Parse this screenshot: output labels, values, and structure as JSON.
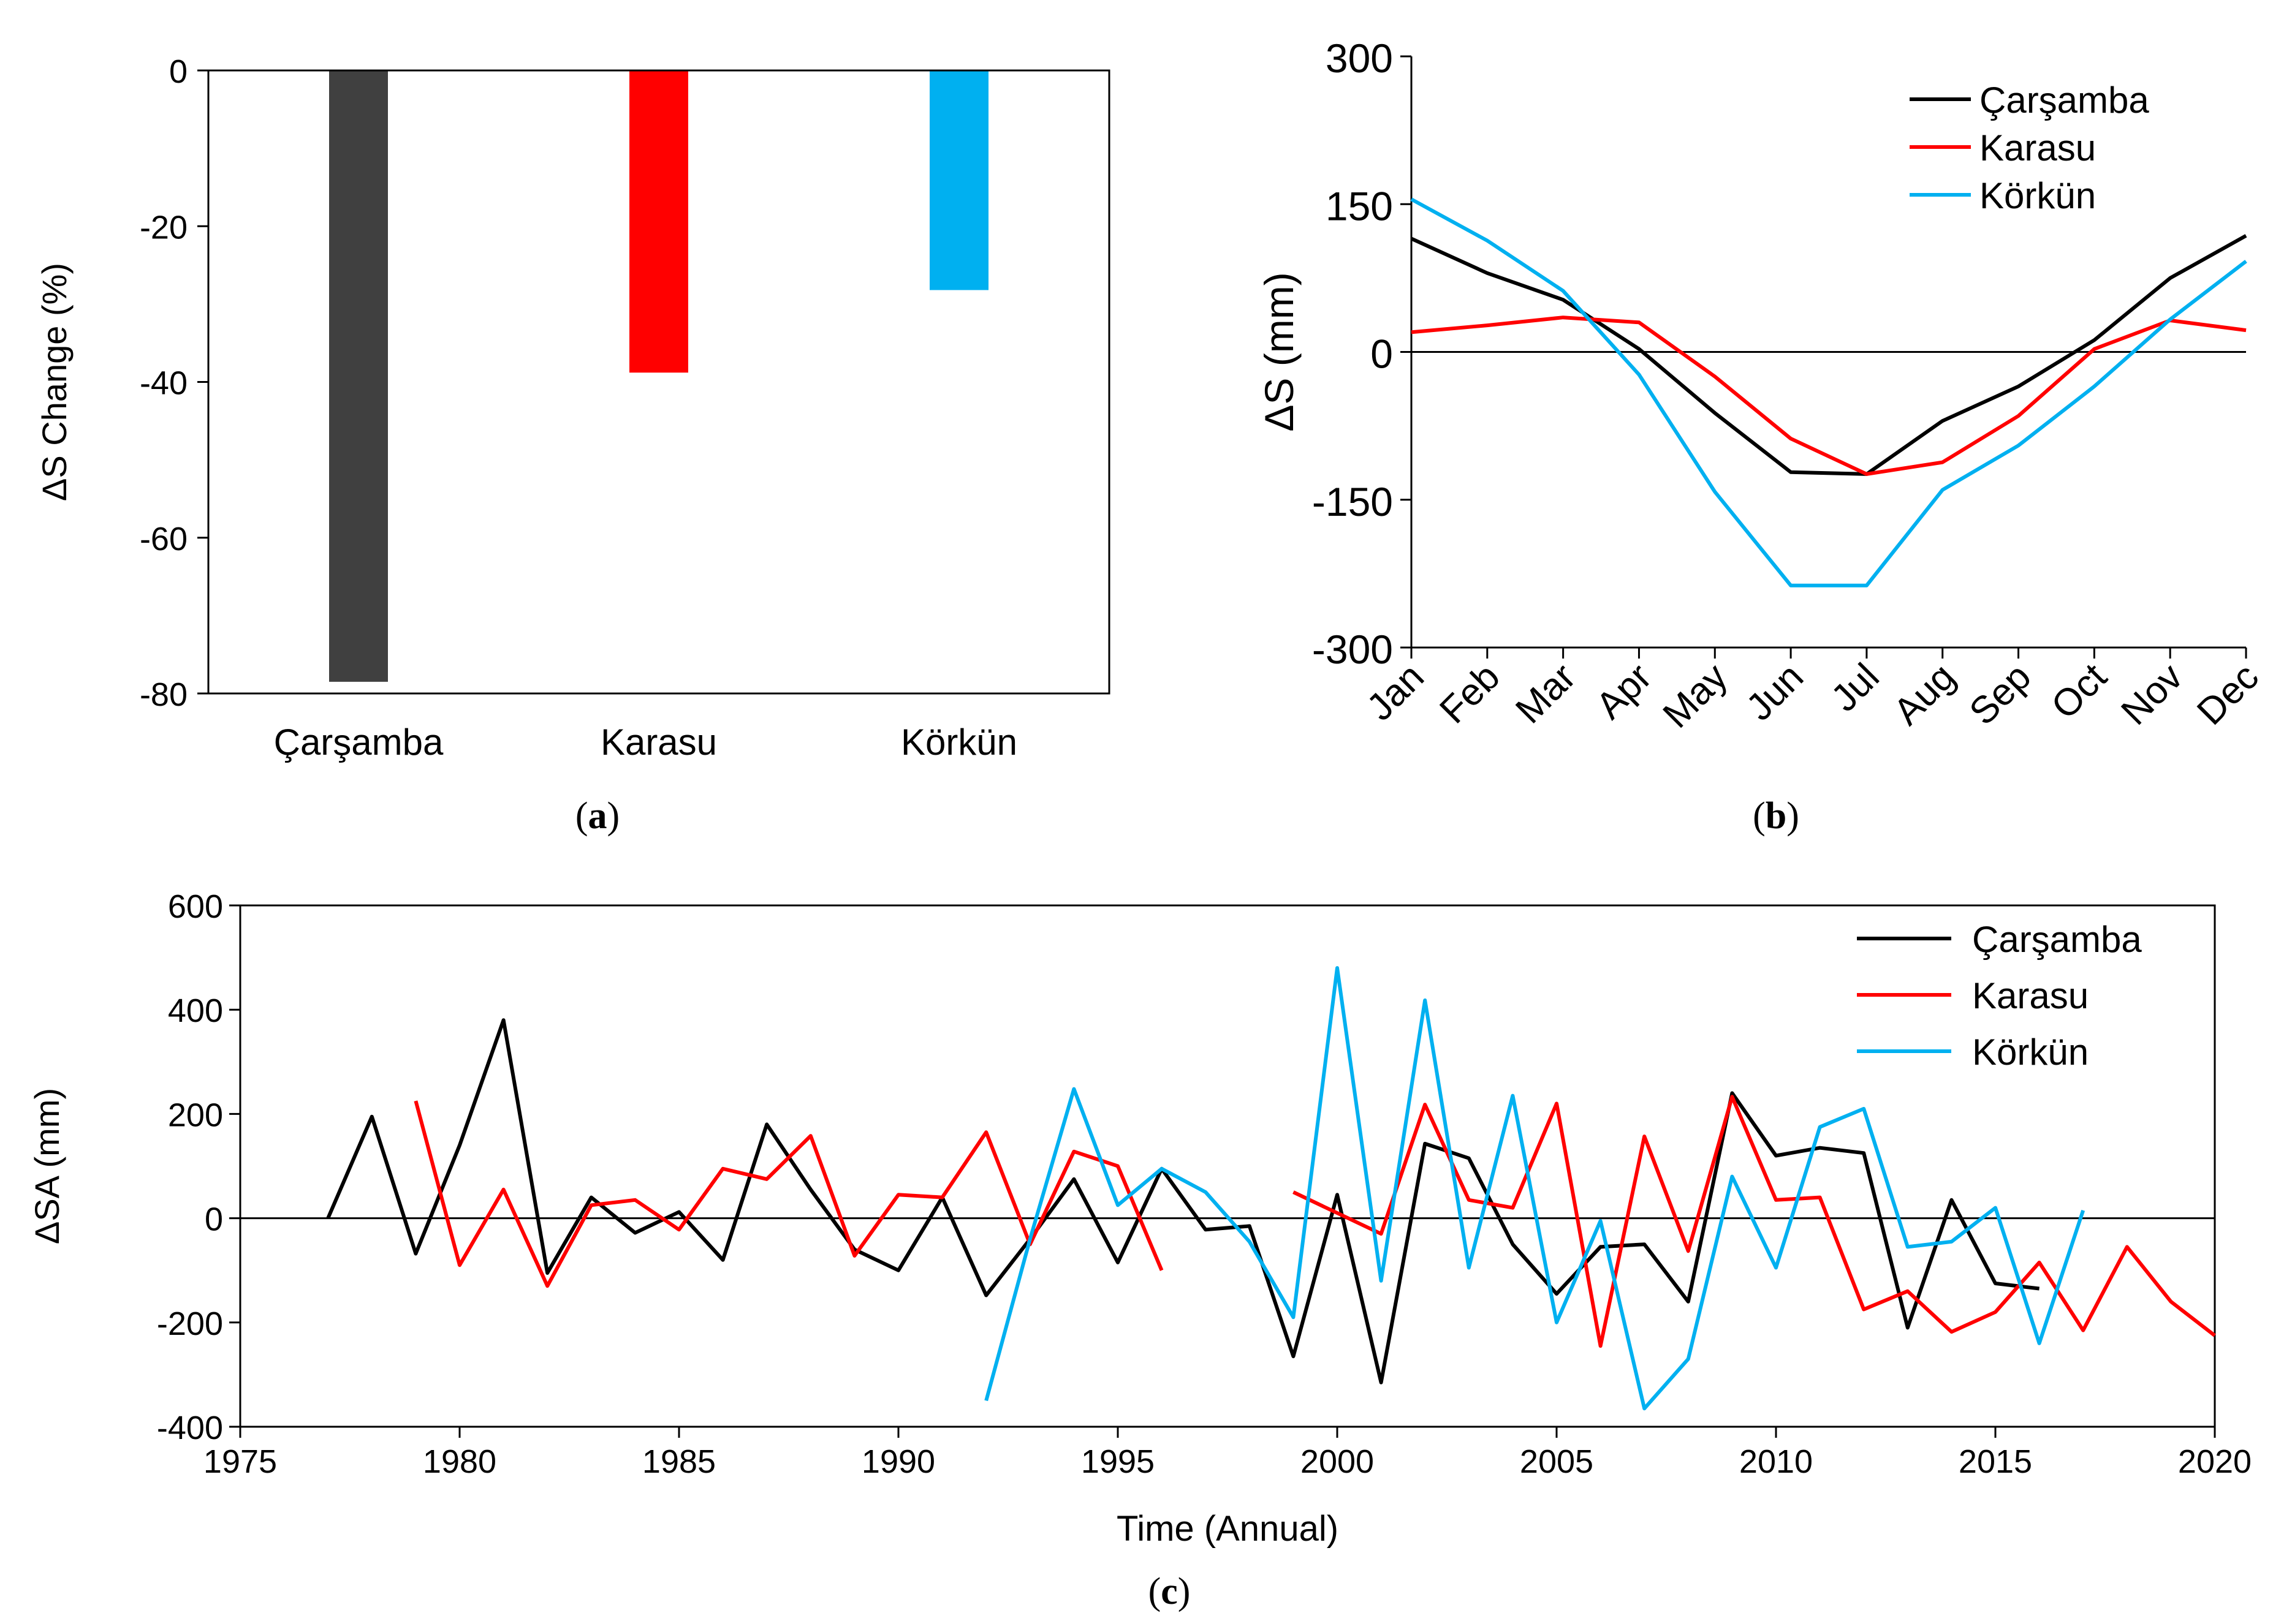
{
  "chart_data": [
    {
      "id": "a",
      "type": "bar",
      "panel_label": "a",
      "categories": [
        "Çarşamba",
        "Karasu",
        "Körkün"
      ],
      "values": [
        -78.5,
        -38.8,
        -28.2
      ],
      "colors": [
        "#404040",
        "#ff0000",
        "#00b0f0"
      ],
      "ylabel": "ΔS Change (%)",
      "ylim": [
        -80,
        0
      ],
      "yticks": [
        0,
        -20,
        -40,
        -60,
        -80
      ]
    },
    {
      "id": "b",
      "type": "line",
      "panel_label": "b",
      "categories": [
        "Jan",
        "Feb",
        "Mar",
        "Apr",
        "May",
        "Jun",
        "Jul",
        "Aug",
        "Sep",
        "Oct",
        "Nov",
        "Dec"
      ],
      "series": [
        {
          "name": "Çarşamba",
          "color": "#000000",
          "values": [
            115,
            80,
            53,
            3,
            -62,
            -122,
            -124,
            -70,
            -35,
            12,
            75,
            118
          ]
        },
        {
          "name": "Karasu",
          "color": "#ff0000",
          "values": [
            20,
            27,
            35,
            30,
            -25,
            -88,
            -124,
            -112,
            -65,
            3,
            32,
            22
          ]
        },
        {
          "name": "Körkün",
          "color": "#00b0f0",
          "values": [
            155,
            113,
            62,
            -23,
            -142,
            -237,
            -237,
            -140,
            -95,
            -35,
            33,
            92
          ]
        }
      ],
      "ylabel": "ΔS (mm)",
      "ylim": [
        -300,
        300
      ],
      "yticks": [
        300,
        150,
        0,
        -150,
        -300
      ],
      "legend_position": "top-right"
    },
    {
      "id": "c",
      "type": "line",
      "panel_label": "c",
      "series": [
        {
          "name": "Çarşamba",
          "color": "#000000",
          "x": [
            1977,
            1978,
            1979,
            1980,
            1981,
            1982,
            1983,
            1984,
            1985,
            1986,
            1987,
            1988,
            1989,
            1990,
            1991,
            1992,
            1993,
            1994,
            1995,
            1996,
            1997,
            1998,
            1999,
            2000,
            2001,
            2002,
            2003,
            2004,
            2005,
            2006,
            2007,
            2008,
            2009,
            2010,
            2011,
            2012,
            2013,
            2014,
            2015,
            2016
          ],
          "values": [
            0,
            195,
            -68,
            140,
            380,
            -105,
            40,
            -28,
            12,
            -80,
            180,
            55,
            -60,
            -100,
            40,
            -148,
            -40,
            75,
            -85,
            95,
            -22,
            -15,
            -265,
            45,
            -315,
            143,
            115,
            -50,
            -145,
            -55,
            -50,
            -160,
            240,
            120,
            135,
            125,
            -210,
            35,
            -125,
            -135
          ]
        },
        {
          "name": "Karasu",
          "color": "#ff0000",
          "x": [
            1979,
            1980,
            1981,
            1982,
            1983,
            1984,
            1985,
            1986,
            1987,
            1988,
            1989,
            1990,
            1991,
            1992,
            1993,
            1994,
            1995,
            1996,
            null,
            1999,
            2000,
            2001,
            2002,
            2003,
            2004,
            2005,
            2006,
            2007,
            2008,
            2009,
            2010,
            2011,
            2012,
            2013,
            2014,
            2015,
            2016,
            2017,
            2018,
            2019,
            2020
          ],
          "values": [
            225,
            -90,
            55,
            -130,
            25,
            35,
            -22,
            95,
            75,
            158,
            -72,
            45,
            40,
            165,
            -50,
            128,
            100,
            -100,
            null,
            50,
            10,
            -30,
            218,
            35,
            20,
            220,
            -245,
            157,
            -63,
            233,
            35,
            40,
            -175,
            -140,
            -218,
            -180,
            -85,
            -215,
            -55,
            -160,
            -225
          ]
        },
        {
          "name": "Körkün",
          "color": "#00b0f0",
          "x": [
            1992,
            1993,
            1994,
            1995,
            1996,
            1997,
            1998,
            1999,
            2000,
            2001,
            2002,
            2003,
            2004,
            2005,
            2006,
            2007,
            2008,
            2009,
            2010,
            2011,
            2012,
            2013,
            2014,
            2015,
            2016,
            2017
          ],
          "values": [
            -350,
            -40,
            248,
            25,
            95,
            50,
            -45,
            -190,
            480,
            -120,
            418,
            -95,
            235,
            -200,
            -5,
            -365,
            -270,
            80,
            -95,
            175,
            210,
            -55,
            -45,
            20,
            -240,
            15
          ]
        }
      ],
      "xlabel": "Time  (Annual)",
      "ylabel": "ΔSA (mm)",
      "xlim": [
        1975,
        2020
      ],
      "ylim": [
        -400,
        600
      ],
      "xticks": [
        1975,
        1980,
        1985,
        1990,
        1995,
        2000,
        2005,
        2010,
        2015,
        2020
      ],
      "yticks": [
        600,
        400,
        200,
        0,
        -200,
        -400
      ],
      "legend_position": "top-right"
    }
  ]
}
